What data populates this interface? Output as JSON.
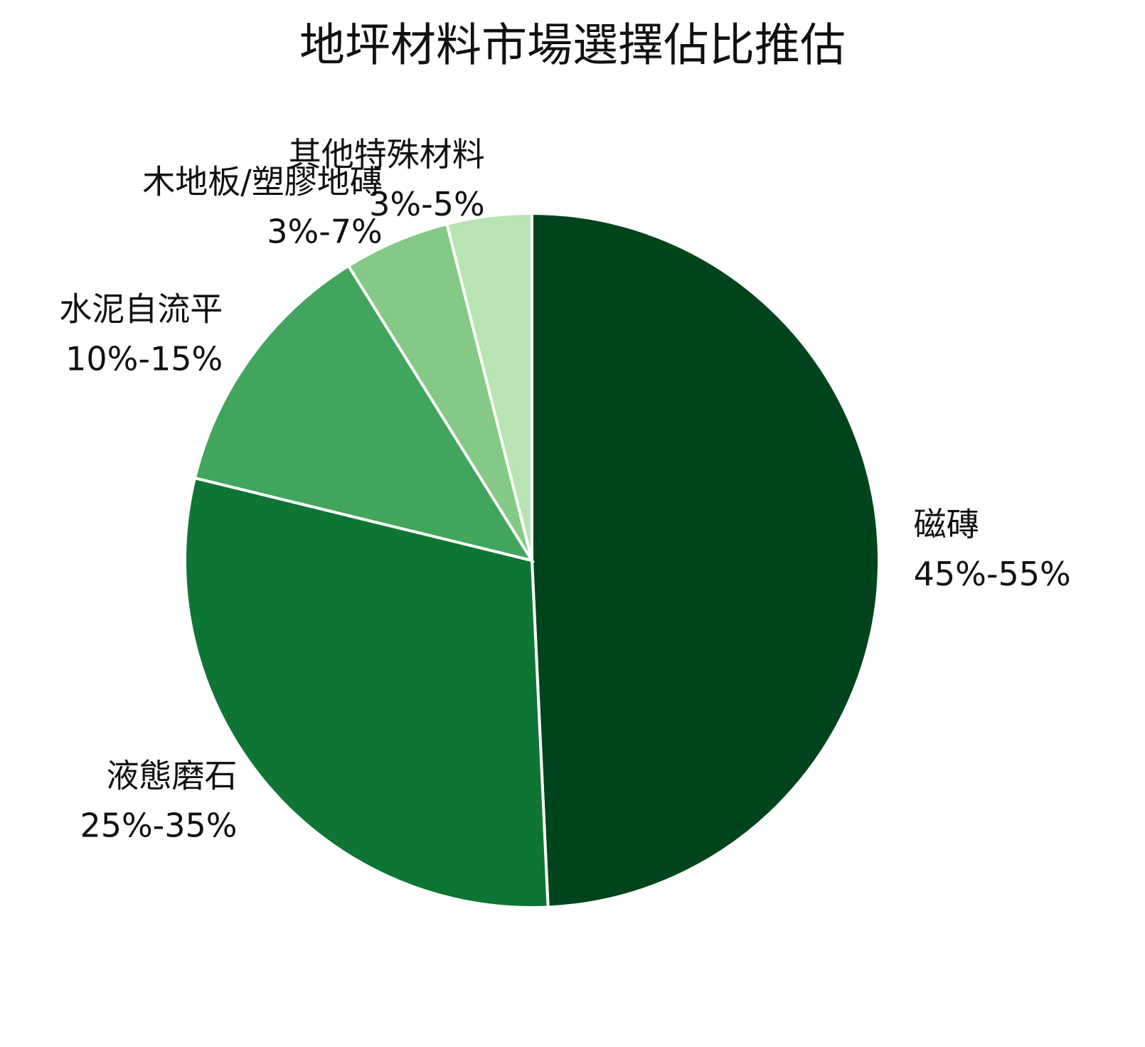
{
  "chart_data": {
    "type": "pie",
    "title": "地坪材料市場選擇佔比推估",
    "categories": [
      "磁磚",
      "液態磨石",
      "水泥自流平",
      "木地板/塑膠地磚",
      "其他特殊材料"
    ],
    "values": [
      50,
      30,
      12.5,
      5,
      4
    ],
    "value_labels": [
      "45%-55%",
      "25%-35%",
      "10%-15%",
      "3%-7%",
      "3%-5%"
    ],
    "colors": [
      "#00441b",
      "#0f7535",
      "#41a55d",
      "#84c985",
      "#b8e3b3"
    ]
  }
}
